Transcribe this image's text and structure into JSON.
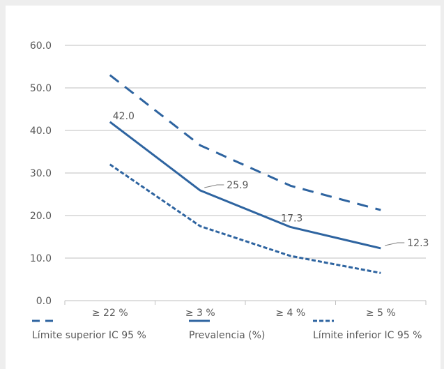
{
  "chart_data": {
    "type": "line",
    "categories": [
      "≥ 22 %",
      "≥ 3 %",
      "≥ 4 %",
      "≥ 5 %"
    ],
    "ylim": [
      0,
      60
    ],
    "yticks": [
      "0.0",
      "10.0",
      "20.0",
      "30.0",
      "40.0",
      "50.0",
      "60.0"
    ],
    "grid": true,
    "legend_position": "bottom",
    "series": [
      {
        "name": "Límite superior IC 95 %",
        "values": [
          53.0,
          36.5,
          27.0,
          21.3
        ],
        "style": "long-dash"
      },
      {
        "name": "Prevalencia (%)",
        "values": [
          42.0,
          25.9,
          17.3,
          12.3
        ],
        "style": "solid"
      },
      {
        "name": "Límite inferior IC 95 %",
        "values": [
          32.0,
          17.5,
          10.5,
          6.5
        ],
        "style": "short-dash"
      }
    ],
    "data_labels": [
      "42.0",
      "25.9",
      "17.3",
      "12.3"
    ]
  },
  "colors": {
    "line": "#2e64a0",
    "grid": "#bfbfbf",
    "text": "#595959"
  }
}
